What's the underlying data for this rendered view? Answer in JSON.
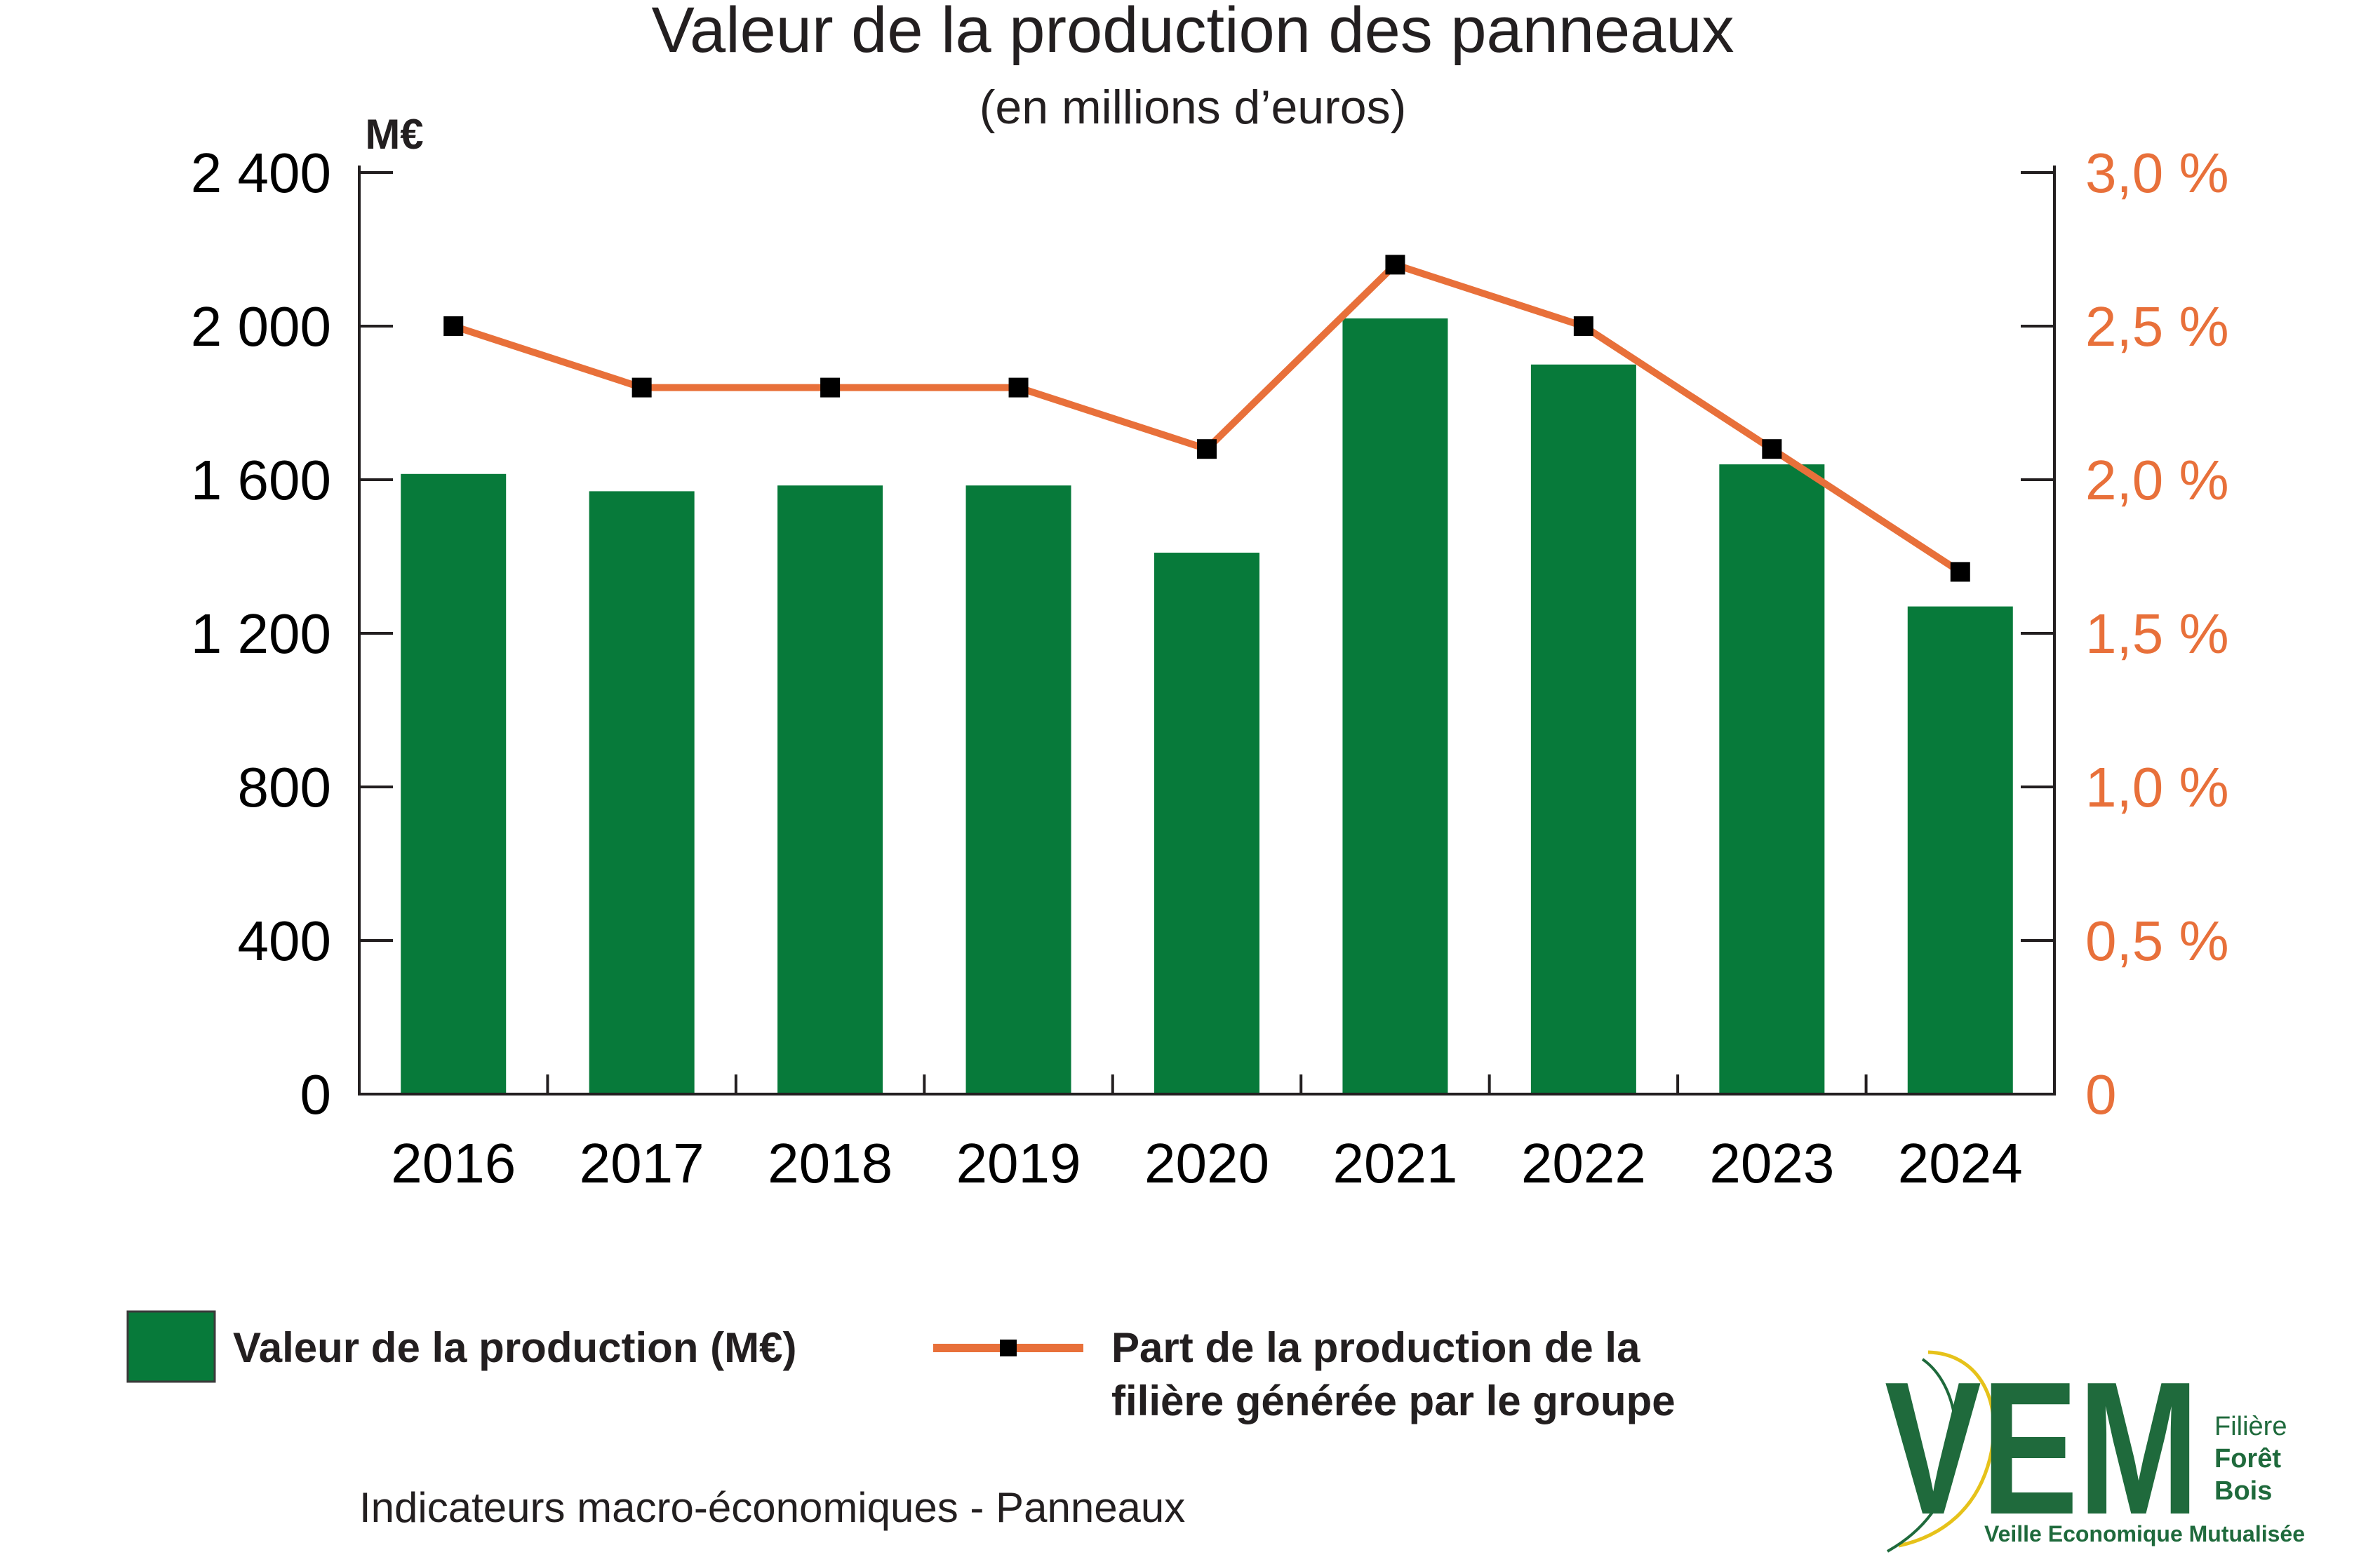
{
  "chart_data": {
    "type": "bar",
    "title": "Valeur de la production des panneaux",
    "subtitle": "(en millions d’euros)",
    "ylabel": "M€",
    "categories": [
      "2016",
      "2017",
      "2018",
      "2019",
      "2020",
      "2021",
      "2022",
      "2023",
      "2024"
    ],
    "ylim": [
      0,
      2400
    ],
    "yticks": [
      {
        "value": 0,
        "label": "0"
      },
      {
        "value": 400,
        "label": "400"
      },
      {
        "value": 800,
        "label": "800"
      },
      {
        "value": 1200,
        "label": "1 200"
      },
      {
        "value": 1600,
        "label": "1 600"
      },
      {
        "value": 2000,
        "label": "2 000"
      },
      {
        "value": 2400,
        "label": "2 400"
      }
    ],
    "y2lim": [
      0,
      3.0
    ],
    "y2ticks": [
      {
        "value": 0,
        "label": "0"
      },
      {
        "value": 0.5,
        "label": "0,5 %"
      },
      {
        "value": 1.0,
        "label": "1,0 %"
      },
      {
        "value": 1.5,
        "label": "1,5 %"
      },
      {
        "value": 2.0,
        "label": "2,0 %"
      },
      {
        "value": 2.5,
        "label": "2,5 %"
      },
      {
        "value": 3.0,
        "label": "3,0 %"
      }
    ],
    "series": [
      {
        "name": "Valeur de la production (M€)",
        "type": "bar",
        "axis": "left",
        "color": "#077a3a",
        "values": [
          1615,
          1570,
          1585,
          1585,
          1410,
          2020,
          1900,
          1640,
          1270
        ]
      },
      {
        "name": "Part de la production de la filière générée par le groupe",
        "legend_lines": [
          "Part de la production de la",
          "filière générée par le groupe"
        ],
        "type": "line",
        "axis": "right",
        "color": "#e8703a",
        "marker_color": "#000000",
        "values": [
          2.5,
          2.3,
          2.3,
          2.3,
          2.1,
          2.7,
          2.5,
          2.1,
          1.7
        ]
      }
    ],
    "grid": false,
    "legend_position": "bottom"
  },
  "footer": {
    "source": "Indicateurs macro-économiques - Panneaux"
  },
  "logo": {
    "mark": "VEM",
    "lines": [
      "Filière",
      "Forêt",
      "Bois"
    ],
    "tagline": "Veille Economique Mutualisée"
  },
  "colors": {
    "bar": "#077a3a",
    "line": "#e8703a",
    "right_axis_labels": "#e8703a",
    "text": "#231f20",
    "logo_green": "#1f6a3c",
    "logo_yellow": "#e6c21a"
  }
}
